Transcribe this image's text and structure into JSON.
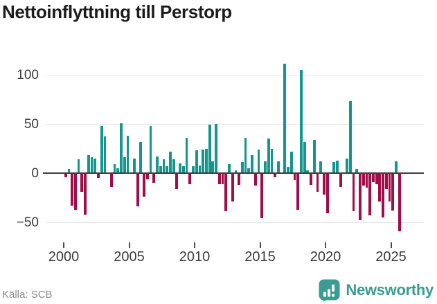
{
  "title": "Nettoinflyttning till Perstorp",
  "source": {
    "text": "Källa: SCB"
  },
  "brand": {
    "name": "Newsworthy"
  },
  "colors": {
    "positive": "#12968e",
    "negative": "#a00d49",
    "zero_line": "#3d3d3d",
    "gridline": "#e4e4e4",
    "title_text": "#1c1c1c",
    "axis_text": "#3a3a3a",
    "source_text": "#8b8b8b",
    "brand_teal": "#3a9c93"
  },
  "chart_data": {
    "type": "bar",
    "title": "Nettoinflyttning till Perstorp",
    "x_axis": {
      "tick_labels": [
        "2000",
        "2005",
        "2010",
        "2015",
        "2020",
        "2025"
      ],
      "tick_values": [
        2000,
        2005,
        2010,
        2015,
        2020,
        2025
      ],
      "start_period": "2000-Q1",
      "end_period": "2025-Q3",
      "frequency": "quarterly"
    },
    "y_axis": {
      "tick_labels": [
        "100",
        "50",
        "0",
        "−50"
      ],
      "tick_values": [
        100,
        50,
        0,
        -50
      ],
      "ylim": [
        -72,
        120
      ],
      "grid": true
    },
    "legend": "none",
    "values": [
      -4,
      4,
      -33,
      -37,
      14,
      -19,
      -42,
      18,
      16,
      15,
      -5,
      48,
      37,
      0,
      -14,
      9,
      5,
      51,
      16,
      38,
      0,
      15,
      -34,
      32,
      -24,
      -6,
      48,
      -10,
      17,
      7,
      14,
      7,
      22,
      14,
      -16,
      10,
      7,
      36,
      -11,
      7,
      23,
      8,
      24,
      25,
      49,
      12,
      50,
      -11,
      -11,
      -39,
      9,
      -29,
      3,
      -12,
      11,
      36,
      5,
      18,
      -13,
      24,
      -46,
      12,
      35,
      25,
      -4,
      12,
      0,
      111,
      6,
      22,
      -7,
      -37,
      105,
      32,
      3,
      -12,
      34,
      -19,
      12,
      -22,
      -41,
      0,
      11,
      13,
      -14,
      0,
      15,
      73,
      -39,
      4,
      -48,
      -13,
      -15,
      -43,
      -9,
      -11,
      -29,
      -45,
      -16,
      -29,
      -38,
      12,
      -59
    ]
  }
}
